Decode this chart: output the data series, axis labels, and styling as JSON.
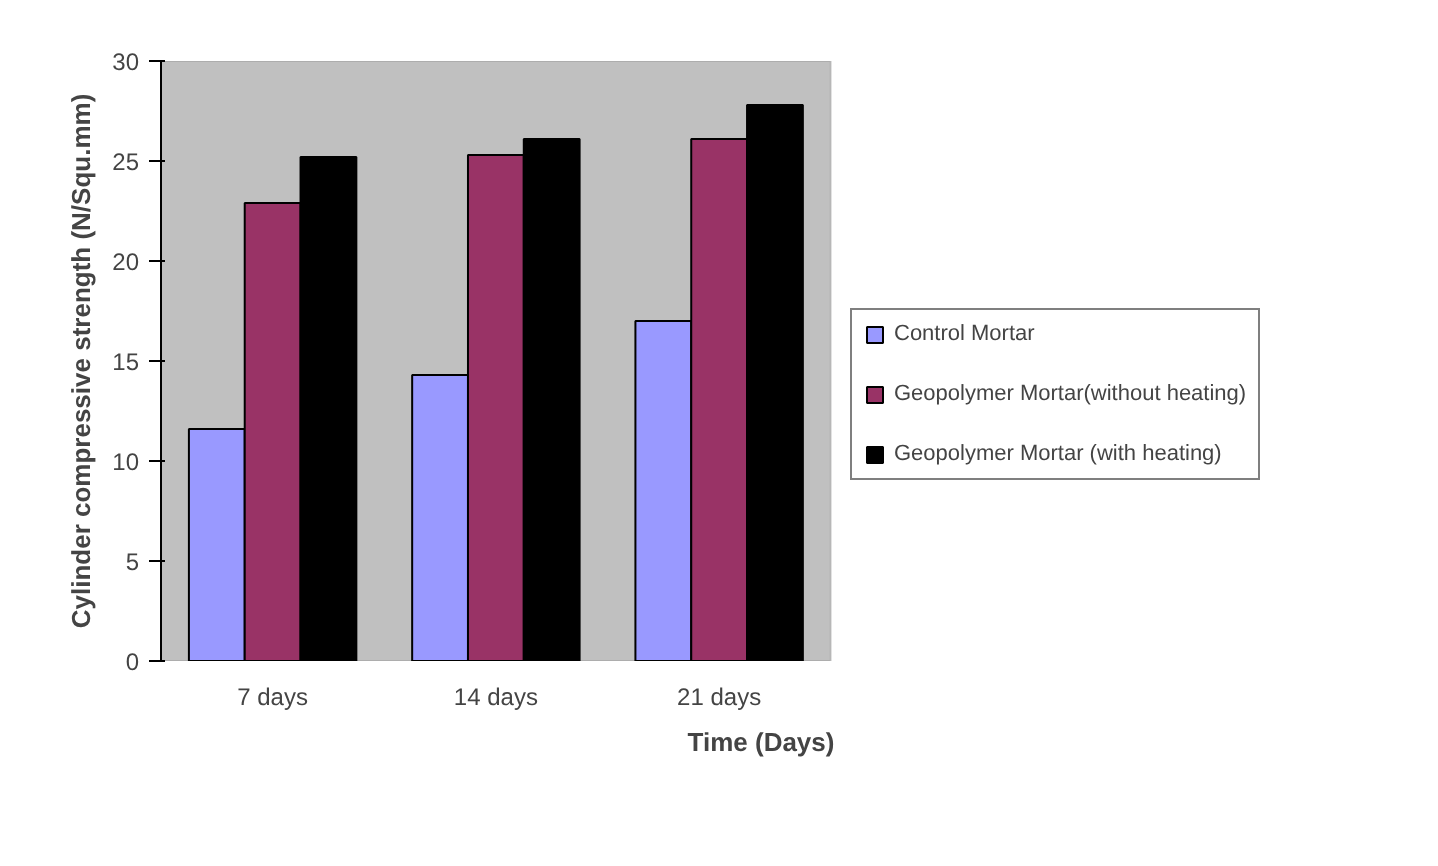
{
  "chart_data": {
    "type": "bar",
    "xlabel": "Time (Days)",
    "ylabel": "Cylinder compressive strength (N/Squ.mm)",
    "categories": [
      "7 days",
      "14 days",
      "21 days"
    ],
    "series": [
      {
        "name": "Control Mortar",
        "color": "#9999ff",
        "values": [
          11.6,
          14.3,
          17.0
        ]
      },
      {
        "name": "Geopolymer Mortar(without heating)",
        "color": "#993366",
        "values": [
          22.9,
          25.3,
          26.1
        ]
      },
      {
        "name": "Geopolymer Mortar (with heating)",
        "color": "#000000",
        "values": [
          25.2,
          26.1,
          27.8
        ]
      }
    ],
    "ylim": [
      0,
      30
    ],
    "yticks": [
      0,
      5,
      10,
      15,
      20,
      25,
      30
    ],
    "grid": false,
    "legend": "right"
  }
}
